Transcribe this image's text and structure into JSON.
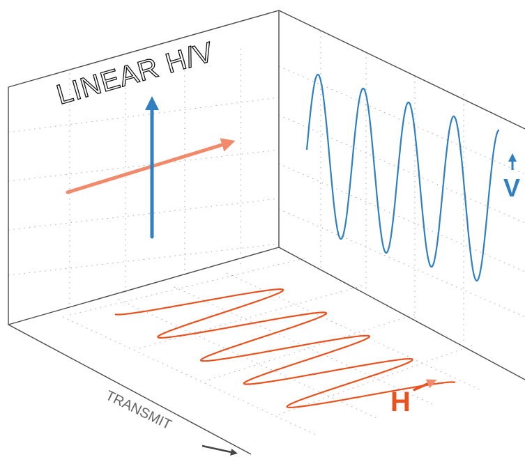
{
  "title": "LINEAR H/V",
  "axis_label": "TRANSMIT",
  "horizontal_label": "H",
  "vertical_label": "V",
  "colors": {
    "vertical": "#2f7fc1",
    "horizontal": "#e8521f",
    "horizontal_vector": "#f08a6a",
    "edges": "#4a4a4a",
    "grid": "#a8a8a8"
  },
  "icons": [
    "arrow-right-icon",
    "arrow-up-icon"
  ]
}
